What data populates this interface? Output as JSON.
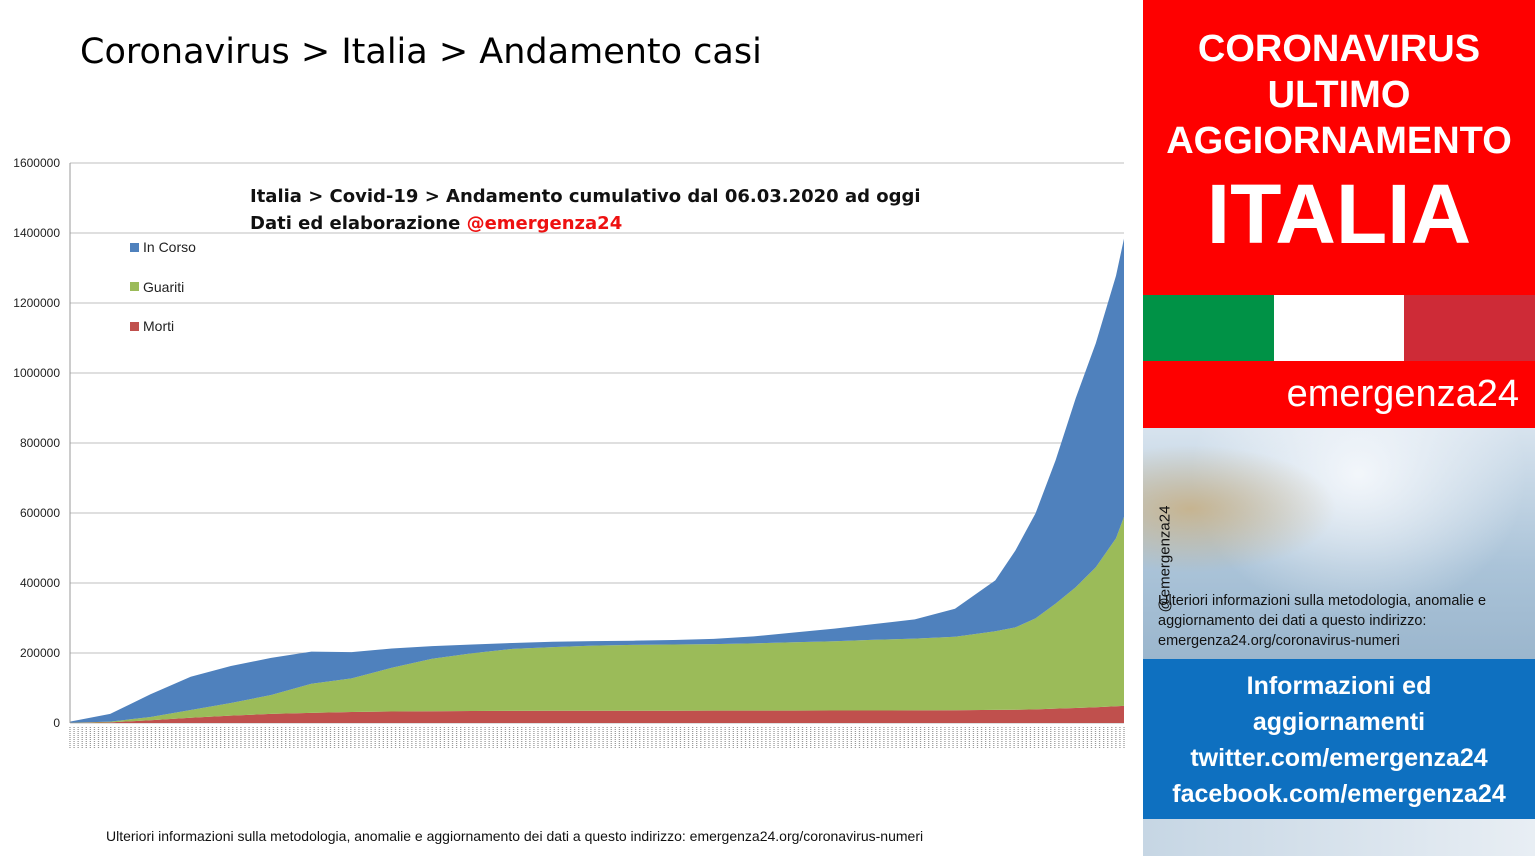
{
  "page": {
    "title": "Coronavirus > Italia > Andamento casi",
    "footer_note": "Ulteriori informazioni sulla metodologia, anomalie e aggiornamento dei dati a questo indirizzo: emergenza24.org/coronavirus-numeri"
  },
  "chart_data": {
    "type": "area",
    "stacked": true,
    "title": "Italia > Covid-19 > Andamento cumulativo dal 06.03.2020 ad oggi",
    "subtitle_prefix": "Dati ed elaborazione ",
    "subtitle_handle": "@emergenza24",
    "xlabel": "",
    "ylabel": "",
    "ylim": [
      0,
      1600000
    ],
    "y_ticks": [
      0,
      200000,
      400000,
      600000,
      800000,
      1000000,
      1200000,
      1400000,
      1600000
    ],
    "x_tick_labels_note": "daily dates (illegible), from 06.03.2020",
    "grid": true,
    "legend_position": "top-left",
    "x": [
      "2020-03-06",
      "2020-03-16",
      "2020-03-26",
      "2020-04-05",
      "2020-04-15",
      "2020-04-25",
      "2020-05-05",
      "2020-05-15",
      "2020-05-25",
      "2020-06-04",
      "2020-06-14",
      "2020-06-24",
      "2020-07-04",
      "2020-07-14",
      "2020-07-24",
      "2020-08-03",
      "2020-08-13",
      "2020-08-23",
      "2020-09-02",
      "2020-09-12",
      "2020-09-22",
      "2020-10-02",
      "2020-10-12",
      "2020-10-22",
      "2020-10-27",
      "2020-11-01",
      "2020-11-06",
      "2020-11-11",
      "2020-11-16",
      "2020-11-21",
      "2020-11-23"
    ],
    "series": [
      {
        "name": "Morti",
        "color": "#c0504d",
        "values": [
          200,
          1800,
          8000,
          15000,
          21000,
          26000,
          29000,
          31500,
          32800,
          33600,
          34300,
          34700,
          34900,
          35100,
          35100,
          35200,
          35300,
          35400,
          35500,
          35600,
          35800,
          36000,
          36300,
          37300,
          38000,
          39000,
          41000,
          43000,
          45000,
          48000,
          49000
        ]
      },
      {
        "name": "Guariti",
        "color": "#9bbb59",
        "values": [
          400,
          2300,
          9000,
          22000,
          36000,
          54000,
          83000,
          96000,
          125000,
          150000,
          165000,
          177000,
          182000,
          186000,
          188000,
          189000,
          190000,
          192000,
          195000,
          198000,
          202000,
          205000,
          210000,
          225000,
          235000,
          260000,
          300000,
          345000,
          400000,
          480000,
          540000
        ]
      },
      {
        "name": "In Corso",
        "color": "#4f81bd",
        "values": [
          3500,
          22000,
          65000,
          95000,
          106000,
          106000,
          92000,
          75000,
          55000,
          36000,
          25000,
          17000,
          15000,
          13000,
          12000,
          13000,
          15000,
          20000,
          28000,
          36000,
          45000,
          55000,
          80000,
          145000,
          220000,
          300000,
          410000,
          540000,
          640000,
          750000,
          795000
        ]
      }
    ]
  },
  "panel": {
    "top_lines": [
      "CORONAVIRUS",
      "ULTIMO",
      "AGGIORNAMENTO"
    ],
    "italia": "ITALIA",
    "flag_colors": [
      "#009246",
      "#ffffff",
      "#ce2b37"
    ],
    "brand": "emergenza24",
    "vertical_handle": "@emergenza24",
    "note": "Ulteriori informazioni sulla metodologia, anomalie e aggiornamento dei dati a questo indirizzo: emergenza24.org/coronavirus-numeri",
    "info_lines": [
      "Informazioni ed",
      "aggiornamenti",
      "twitter.com/emergenza24",
      "facebook.com/emergenza24"
    ]
  }
}
